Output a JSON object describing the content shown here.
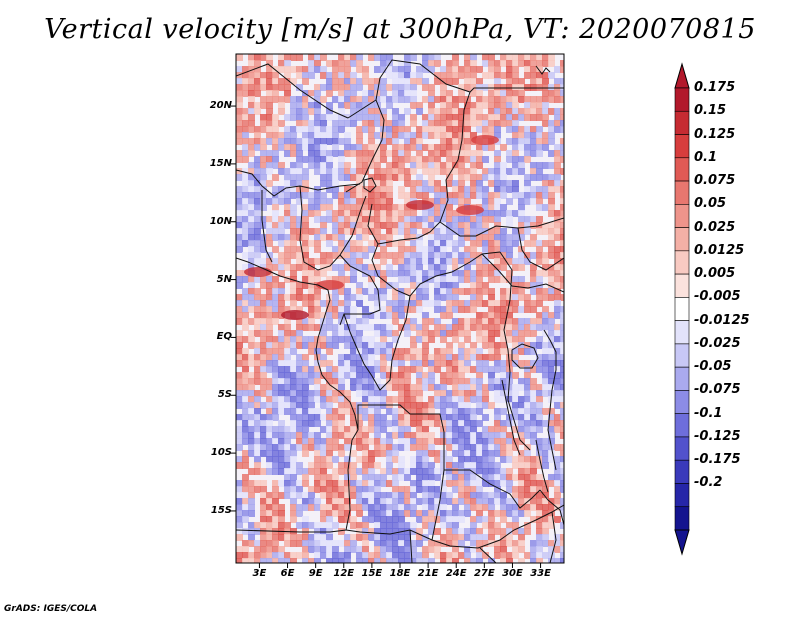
{
  "title": "Vertical velocity [m/s] at 300hPa, VT: 2020070815",
  "footer": "GrADS: IGES/COLA",
  "lat_labels": [
    "20N",
    "15N",
    "10N",
    "5N",
    "EQ",
    "5S",
    "10S",
    "15S"
  ],
  "lat_values": [
    20,
    15,
    10,
    5,
    0,
    -5,
    -10,
    -15
  ],
  "lon_labels": [
    "3E",
    "6E",
    "9E",
    "12E",
    "15E",
    "18E",
    "21E",
    "24E",
    "27E",
    "30E",
    "33E"
  ],
  "lon_values": [
    3,
    6,
    9,
    12,
    15,
    18,
    21,
    24,
    27,
    30,
    33
  ],
  "map_extent": {
    "lon": [
      0.5,
      35.5
    ],
    "lat": [
      -19.5,
      24.5
    ]
  },
  "colorbar": {
    "labels": [
      "0.175",
      "0.15",
      "0.125",
      "0.1",
      "0.075",
      "0.05",
      "0.025",
      "0.0125",
      "0.005",
      "-0.005",
      "-0.0125",
      "-0.025",
      "-0.05",
      "-0.075",
      "-0.1",
      "-0.125",
      "-0.175",
      "-0.2"
    ],
    "colors": [
      "#b2182b",
      "#c62b32",
      "#d73d3d",
      "#e05a55",
      "#e8776f",
      "#ee948b",
      "#f4b0a6",
      "#f8cac2",
      "#fbe2dd",
      "#ffffff",
      "#e3e3fb",
      "#c8c8f6",
      "#aaaaef",
      "#8c8ce6",
      "#6e6edb",
      "#5252cc",
      "#3a3abb",
      "#2626a8",
      "#14148f"
    ],
    "arrow_top_color": "#b2182b",
    "arrow_bottom_color": "#14148f"
  },
  "field_colors": {
    "background": "#f4f1f8",
    "red": "#e46a6a",
    "blue": "#6c6cdc"
  }
}
